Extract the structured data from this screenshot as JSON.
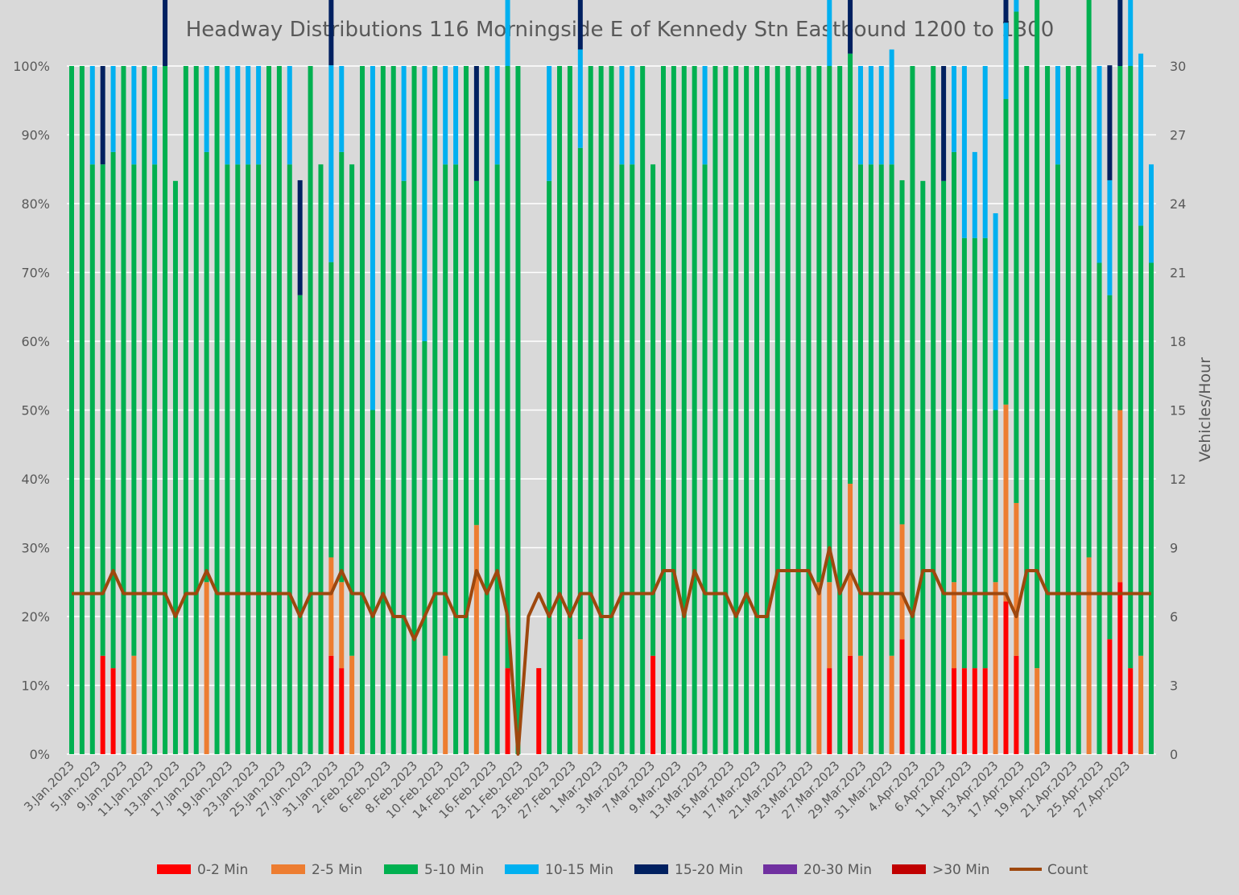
{
  "chart_data": {
    "type": "bar",
    "stacked": true,
    "percent_stacked": true,
    "title": "Headway Distributions 116 Morningside  E of Kennedy Stn Eastbound 1200 to 1300",
    "ylabel": "",
    "y2label": "Vehicles/Hour",
    "ylim": [
      0,
      100
    ],
    "y2lim": [
      0,
      30
    ],
    "yticks": [
      "0%",
      "10%",
      "20%",
      "30%",
      "40%",
      "50%",
      "60%",
      "70%",
      "80%",
      "90%",
      "100%"
    ],
    "y2ticks": [
      "0",
      "3",
      "6",
      "9",
      "12",
      "15",
      "18",
      "21",
      "24",
      "27",
      "30"
    ],
    "grid": true,
    "legend_position": "bottom",
    "xtick_labels": [
      "3.Jan.2023",
      "5.Jan.2023",
      "9.Jan.2023",
      "11.Jan.2023",
      "13.Jan.2023",
      "17.Jan.2023",
      "19.Jan.2023",
      "23.Jan.2023",
      "25.Jan.2023",
      "27.Jan.2023",
      "31.Jan.2023",
      "2.Feb.2023",
      "6.Feb.2023",
      "8.Feb.2023",
      "10.Feb.2023",
      "14.Feb.2023",
      "16.Feb.2023",
      "21.Feb.2023",
      "23.Feb.2023",
      "27.Feb.2023",
      "1.Mar.2023",
      "3.Mar.2023",
      "7.Mar.2023",
      "9.Mar.2023",
      "13.Mar.2023",
      "15.Mar.2023",
      "17.Mar.2023",
      "21.Mar.2023",
      "23.Mar.2023",
      "27.Mar.2023",
      "29.Mar.2023",
      "31.Mar.2023",
      "4.Apr.2023",
      "6.Apr.2023",
      "11.Apr.2023",
      "13.Apr.2023",
      "17.Apr.2023",
      "19.Apr.2023",
      "21.Apr.2023",
      "25.Apr.2023",
      "27.Apr.2023"
    ],
    "series": [
      {
        "name": "0-2 Min",
        "color": "#ff0000",
        "values": [
          0,
          0,
          0,
          14.3,
          12.5,
          0,
          0,
          0,
          0,
          0,
          0,
          0,
          0,
          0,
          0,
          0,
          0,
          0,
          0,
          0,
          0,
          0,
          0,
          0,
          0,
          14.3,
          12.5,
          0,
          0,
          0,
          0,
          0,
          0,
          0,
          0,
          0,
          0,
          0,
          0,
          0,
          0,
          0,
          12.5,
          0,
          0,
          12.5,
          0,
          0,
          0,
          0,
          0,
          0,
          0,
          0,
          0,
          0,
          14.3,
          0,
          0,
          0,
          0,
          0,
          0,
          0,
          0,
          0,
          0,
          0,
          0,
          0,
          0,
          0,
          0,
          12.5,
          0,
          14.3,
          0,
          0,
          0,
          0,
          16.7,
          0,
          0,
          0,
          0,
          12.5,
          12.5,
          12.5,
          12.5,
          0,
          22.2,
          14.3,
          0,
          0,
          0,
          0,
          0,
          0,
          0,
          0,
          16.7,
          25,
          12.5,
          0
        ]
      },
      {
        "name": "2-5 Min",
        "color": "#ed7d31",
        "values": [
          0,
          0,
          0,
          0,
          0,
          0,
          14.3,
          0,
          0,
          0,
          0,
          0,
          0,
          25,
          0,
          0,
          0,
          0,
          0,
          0,
          0,
          0,
          0,
          0,
          0,
          14.3,
          12.5,
          14.3,
          0,
          0,
          0,
          0,
          0,
          0,
          0,
          0,
          14.3,
          0,
          0,
          33.3,
          0,
          0,
          0,
          0,
          0,
          0,
          0,
          0,
          0,
          16.7,
          0,
          0,
          0,
          0,
          0,
          0,
          0,
          0,
          0,
          0,
          0,
          0,
          0,
          0,
          0,
          0,
          0,
          0,
          0,
          0,
          0,
          0,
          25,
          12.5,
          0,
          25,
          14.3,
          0,
          0,
          14.3,
          16.7,
          0,
          0,
          0,
          0,
          12.5,
          0,
          0,
          0,
          25,
          28.6,
          22.2,
          0,
          12.5,
          0,
          0,
          0,
          0,
          28.6,
          0,
          0,
          25,
          0,
          14.3
        ]
      },
      {
        "name": "5-10 Min",
        "color": "#00b050",
        "values": [
          100,
          100,
          85.7,
          71.4,
          75,
          100,
          71.4,
          100,
          85.7,
          100,
          83.3,
          100,
          100,
          62.5,
          100,
          85.7,
          85.7,
          85.7,
          85.7,
          100,
          100,
          85.7,
          66.7,
          100,
          85.7,
          42.9,
          62.5,
          71.4,
          100,
          50,
          100,
          100,
          83.3,
          100,
          60,
          100,
          71.4,
          85.7,
          100,
          50,
          100,
          85.7,
          87.5,
          100,
          0,
          0,
          83.3,
          100,
          100,
          71.4,
          100,
          100,
          100,
          85.7,
          85.7,
          100,
          71.4,
          100,
          100,
          100,
          100,
          85.7,
          100,
          100,
          100,
          100,
          100,
          100,
          100,
          100,
          100,
          100,
          75,
          75,
          100,
          62.5,
          71.4,
          85.7,
          85.7,
          71.4,
          50,
          100,
          83.3,
          100,
          83.3,
          62.5,
          62.5,
          62.5,
          62.5,
          25,
          44.4,
          71.4,
          100,
          100,
          100,
          85.7,
          100,
          100,
          100,
          71.4,
          50,
          50,
          87.5,
          62.5,
          71.4
        ]
      },
      {
        "name": "10-15 Min",
        "color": "#00b0f0",
        "values": [
          0,
          0,
          14.3,
          0,
          12.5,
          0,
          14.3,
          0,
          14.3,
          0,
          0,
          0,
          0,
          12.5,
          0,
          14.3,
          14.3,
          14.3,
          14.3,
          0,
          0,
          14.3,
          0,
          0,
          0,
          28.6,
          12.5,
          0,
          0,
          50,
          0,
          0,
          16.7,
          0,
          40,
          0,
          14.3,
          14.3,
          0,
          0,
          0,
          14.3,
          12.5,
          0,
          0,
          0,
          16.7,
          0,
          0,
          14.3,
          0,
          0,
          0,
          14.3,
          14.3,
          0,
          0,
          0,
          0,
          0,
          0,
          14.3,
          0,
          0,
          0,
          0,
          0,
          0,
          0,
          0,
          0,
          0,
          0,
          25,
          0,
          0,
          14.3,
          14.3,
          14.3,
          16.7,
          0,
          0,
          0,
          0,
          0,
          12.5,
          25,
          12.5,
          25,
          28.6,
          11.1,
          14.3,
          0,
          0,
          0,
          14.3,
          0,
          0,
          0,
          28.6,
          16.7,
          0,
          12.5,
          25,
          14.3
        ]
      },
      {
        "name": "15-20 Min",
        "color": "#002060",
        "values": [
          0,
          0,
          0,
          14.3,
          0,
          0,
          0,
          0,
          0,
          16.7,
          0,
          0,
          0,
          0,
          0,
          0,
          0,
          0,
          0,
          0,
          0,
          0,
          16.7,
          0,
          0,
          14.3,
          0,
          0,
          0,
          0,
          0,
          0,
          0,
          0,
          0,
          0,
          0,
          0,
          0,
          16.7,
          0,
          0,
          0,
          0,
          0,
          0,
          0,
          0,
          0,
          14.3,
          0,
          0,
          0,
          0,
          0,
          0,
          0,
          0,
          0,
          0,
          0,
          0,
          0,
          0,
          0,
          0,
          0,
          0,
          0,
          0,
          0,
          0,
          0,
          0,
          0,
          14.3,
          0,
          0,
          0,
          0,
          0,
          0,
          0,
          0,
          16.7,
          0,
          0,
          0,
          0,
          0,
          11.1,
          0,
          0,
          0,
          0,
          0,
          0,
          0,
          0,
          0,
          16.7,
          12.5,
          0,
          0,
          0
        ]
      },
      {
        "name": "20-30 Min",
        "color": "#7030a0",
        "values": [
          0,
          0,
          0,
          0,
          0,
          0,
          0,
          0,
          0,
          0,
          0,
          0,
          0,
          0,
          0,
          0,
          0,
          0,
          0,
          0,
          0,
          0,
          0,
          0,
          0,
          0,
          0,
          0,
          0,
          0,
          0,
          0,
          0,
          0,
          0,
          0,
          0,
          0,
          0,
          0,
          0,
          0,
          0,
          0,
          0,
          0,
          0,
          0,
          0,
          0,
          0,
          0,
          0,
          0,
          0,
          0,
          0,
          0,
          0,
          0,
          0,
          0,
          0,
          0,
          0,
          0,
          0,
          0,
          0,
          0,
          0,
          0,
          0,
          0,
          0,
          0,
          0,
          0,
          0,
          0,
          0,
          0,
          0,
          0,
          0,
          0,
          0,
          0,
          0,
          0,
          0,
          0,
          0,
          0,
          0,
          0,
          0,
          0,
          0,
          0,
          0,
          0,
          0,
          0,
          0
        ]
      },
      {
        "name": ">30 Min",
        "color": "#c00000",
        "values": [
          0,
          0,
          0,
          0,
          0,
          0,
          0,
          0,
          0,
          0,
          0,
          0,
          0,
          0,
          0,
          0,
          0,
          0,
          0,
          0,
          0,
          0,
          0,
          0,
          0,
          0,
          0,
          0,
          0,
          0,
          0,
          0,
          0,
          0,
          0,
          0,
          0,
          0,
          0,
          0,
          0,
          0,
          0,
          0,
          0,
          0,
          0,
          0,
          0,
          0,
          0,
          0,
          0,
          0,
          0,
          0,
          0,
          0,
          0,
          0,
          0,
          0,
          0,
          0,
          0,
          0,
          0,
          0,
          0,
          0,
          0,
          0,
          0,
          0,
          0,
          0,
          0,
          0,
          0,
          0,
          0,
          0,
          0,
          0,
          0,
          0,
          0,
          0,
          0,
          0,
          0,
          0,
          0,
          0,
          0,
          0,
          0,
          0,
          0,
          0,
          0,
          0,
          0,
          0,
          0
        ]
      },
      {
        "name": "Count",
        "color": "#9e480e",
        "type": "line",
        "axis": "right",
        "values": [
          7,
          7,
          7,
          7,
          8,
          7,
          7,
          7,
          7,
          7,
          6,
          7,
          7,
          8,
          7,
          7,
          7,
          7,
          7,
          7,
          7,
          7,
          6,
          7,
          7,
          7,
          8,
          7,
          7,
          6,
          7,
          6,
          6,
          5,
          6,
          7,
          7,
          6,
          6,
          8,
          7,
          8,
          6,
          0,
          6,
          7,
          6,
          7,
          6,
          7,
          7,
          6,
          6,
          7,
          7,
          7,
          7,
          8,
          8,
          6,
          8,
          7,
          7,
          7,
          6,
          7,
          6,
          6,
          8,
          8,
          8,
          8,
          7,
          9,
          7,
          8,
          7,
          7,
          7,
          7,
          7,
          6,
          8,
          8,
          7,
          7,
          7,
          7,
          7,
          7,
          7,
          6,
          8,
          8,
          7,
          7,
          7,
          7,
          7,
          7,
          7,
          7,
          7,
          7,
          7
        ]
      }
    ]
  }
}
